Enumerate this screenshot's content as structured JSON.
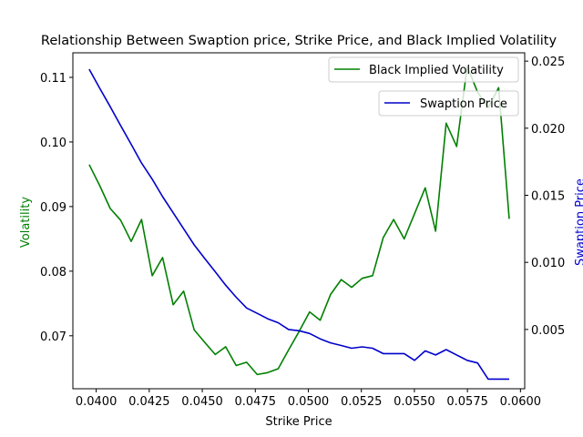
{
  "chart_data": {
    "type": "line",
    "title": "Relationship Between Swaption price, Strike Price, and Black Implied Volatility",
    "xlabel": "Strike Price",
    "ylabel_left": "Volatility",
    "ylabel_right": "Swaption Price",
    "xlim": [
      0.0389,
      0.0602
    ],
    "ylim_left": [
      0.0618,
      0.1138
    ],
    "ylim_right": [
      0.00058,
      0.02562
    ],
    "x_ticks": [
      0.04,
      0.0425,
      0.045,
      0.0475,
      0.05,
      0.0525,
      0.055,
      0.0575,
      0.06
    ],
    "x_tick_labels": [
      "0.0400",
      "0.0425",
      "0.0450",
      "0.0475",
      "0.0500",
      "0.0525",
      "0.0550",
      "0.0575",
      "0.0600"
    ],
    "y_left_ticks": [
      0.07,
      0.08,
      0.09,
      0.1,
      0.11
    ],
    "y_left_tick_labels": [
      "0.07",
      "0.08",
      "0.09",
      "0.10",
      "0.11"
    ],
    "y_right_ticks": [
      0.005,
      0.01,
      0.015,
      0.02,
      0.025
    ],
    "y_right_tick_labels": [
      "0.005",
      "0.010",
      "0.015",
      "0.020",
      "0.025"
    ],
    "grid": false,
    "series": [
      {
        "name": "Black Implied Volatility",
        "axis": "left",
        "color": "#008000",
        "x": [
          0.03967,
          0.04016,
          0.04066,
          0.04115,
          0.04165,
          0.04214,
          0.04264,
          0.04313,
          0.04363,
          0.04412,
          0.04462,
          0.04511,
          0.04561,
          0.0461,
          0.0466,
          0.04709,
          0.04759,
          0.04808,
          0.04858,
          0.04907,
          0.04957,
          0.05006,
          0.05056,
          0.05105,
          0.05155,
          0.05204,
          0.05254,
          0.05303,
          0.05353,
          0.05402,
          0.05452,
          0.05501,
          0.05551,
          0.056,
          0.0565,
          0.05699,
          0.05749,
          0.05798,
          0.05848,
          0.05897,
          0.05947
        ],
        "values": [
          0.0965,
          0.0933,
          0.0897,
          0.0879,
          0.0846,
          0.088,
          0.0793,
          0.0821,
          0.0748,
          0.0769,
          0.0709,
          0.069,
          0.0671,
          0.0683,
          0.0654,
          0.0659,
          0.064,
          0.0643,
          0.0649,
          0.0678,
          0.0707,
          0.0737,
          0.0724,
          0.0764,
          0.0787,
          0.0775,
          0.0789,
          0.0793,
          0.0852,
          0.088,
          0.085,
          0.0889,
          0.0929,
          0.0862,
          0.1029,
          0.0993,
          0.1117,
          0.1077,
          0.1053,
          0.1084,
          0.0881
        ]
      },
      {
        "name": "Swaption Price",
        "axis": "right",
        "color": "#0000cc",
        "x": [
          0.03967,
          0.04016,
          0.04066,
          0.04115,
          0.04165,
          0.04214,
          0.04264,
          0.04313,
          0.04363,
          0.04412,
          0.04462,
          0.04511,
          0.04561,
          0.0461,
          0.0466,
          0.04709,
          0.04759,
          0.04808,
          0.04858,
          0.04907,
          0.04957,
          0.05006,
          0.05056,
          0.05105,
          0.05155,
          0.05204,
          0.05254,
          0.05303,
          0.05353,
          0.05402,
          0.05452,
          0.05501,
          0.05551,
          0.056,
          0.0565,
          0.05699,
          0.05749,
          0.05798,
          0.05848,
          0.05897,
          0.05947
        ],
        "values": [
          0.0244,
          0.023,
          0.0216,
          0.0202,
          0.0188,
          0.0174,
          0.0162,
          0.0149,
          0.0137,
          0.0125,
          0.0113,
          0.0103,
          0.0093,
          0.0083,
          0.0074,
          0.0066,
          0.0062,
          0.0058,
          0.0055,
          0.005,
          0.0049,
          0.0047,
          0.0043,
          0.004,
          0.0038,
          0.0036,
          0.0037,
          0.0036,
          0.0032,
          0.0032,
          0.0032,
          0.0027,
          0.0034,
          0.0031,
          0.0035,
          0.0031,
          0.0027,
          0.0025,
          0.0013,
          0.0013,
          0.0013
        ]
      }
    ],
    "legend": [
      {
        "label": "Black Implied Volatility",
        "placement": "top-right"
      },
      {
        "label": "Swaption Price",
        "placement": "upper-right"
      }
    ]
  }
}
